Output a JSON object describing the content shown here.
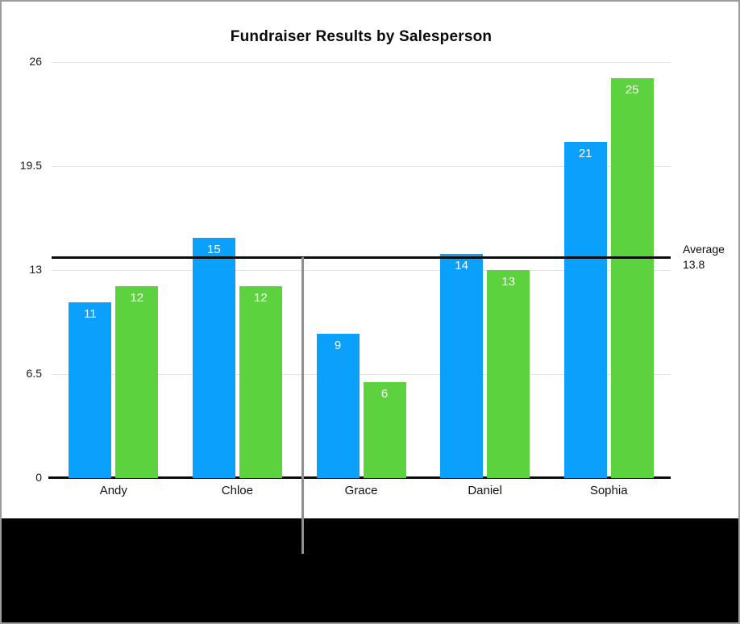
{
  "chart_data": {
    "type": "bar",
    "title": "Fundraiser Results by Salesperson",
    "categories": [
      "Andy",
      "Chloe",
      "Grace",
      "Daniel",
      "Sophia"
    ],
    "series": [
      {
        "name": "blue-series",
        "color": "#0aa0fc",
        "values": [
          11,
          15,
          9,
          14,
          21
        ]
      },
      {
        "name": "green-series",
        "color": "#5cd33e",
        "values": [
          12,
          12,
          6,
          13,
          25
        ]
      }
    ],
    "y_ticks": [
      0,
      6.5,
      13,
      19.5,
      26
    ],
    "ylim": [
      0,
      26
    ],
    "grid": true,
    "legend": "none",
    "value_labels": "inside-top",
    "average": {
      "label": "Average",
      "value": "13.8",
      "numeric": 13.8
    }
  },
  "colors": {
    "bar_blue": "#0aa0fc",
    "bar_green": "#5cd33e",
    "gridline": "#e4e4e4",
    "axis": "#0b0b0b",
    "average_line": "#0b0b0b",
    "cursor_line": "#8f8f8f",
    "value_label_text": "#ffffff",
    "bottom_band": "#000000",
    "frame_border": "#9c9c9c"
  }
}
